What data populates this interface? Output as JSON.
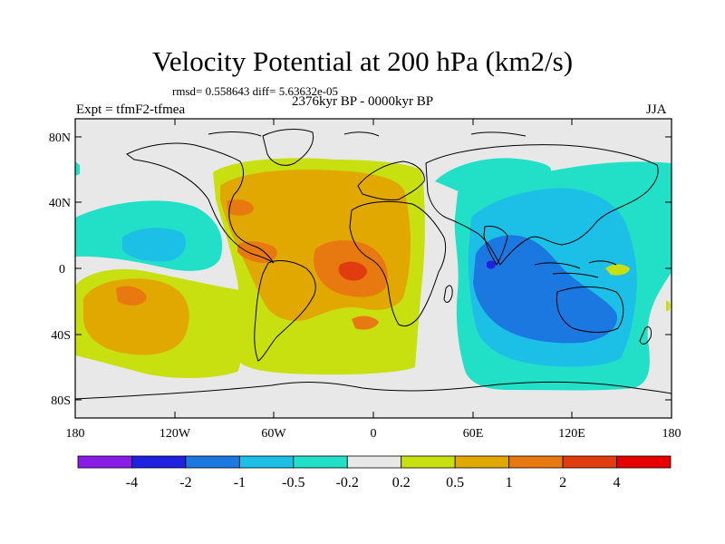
{
  "title": "Velocity Potential at 200 hPa (km2/s)",
  "stats": "rmsd= 0.558643 diff= 5.63632e-05",
  "period": "2376kyr BP - 0000kyr BP",
  "experiment": "Expt = tfmF2-tfmea",
  "season": "JJA",
  "map": {
    "lat_labels": [
      "80N",
      "40N",
      "0",
      "40S",
      "80S"
    ],
    "lon_labels": [
      "180",
      "120W",
      "60W",
      "0",
      "60E",
      "120E",
      "180"
    ],
    "lat_range": [
      -90,
      90
    ],
    "lon_range": [
      -180,
      180
    ]
  },
  "colorbar": {
    "boundaries": [
      "-4",
      "-2",
      "-1",
      "-0.5",
      "-0.2",
      "0.2",
      "0.5",
      "1",
      "2",
      "4"
    ],
    "colors": [
      "#8a1ce8",
      "#2020e0",
      "#1a78e0",
      "#1cbfe6",
      "#22e0c8",
      "#e8e8e8",
      "#c8e010",
      "#e0a800",
      "#e87810",
      "#e03c10",
      "#e60000"
    ]
  }
}
